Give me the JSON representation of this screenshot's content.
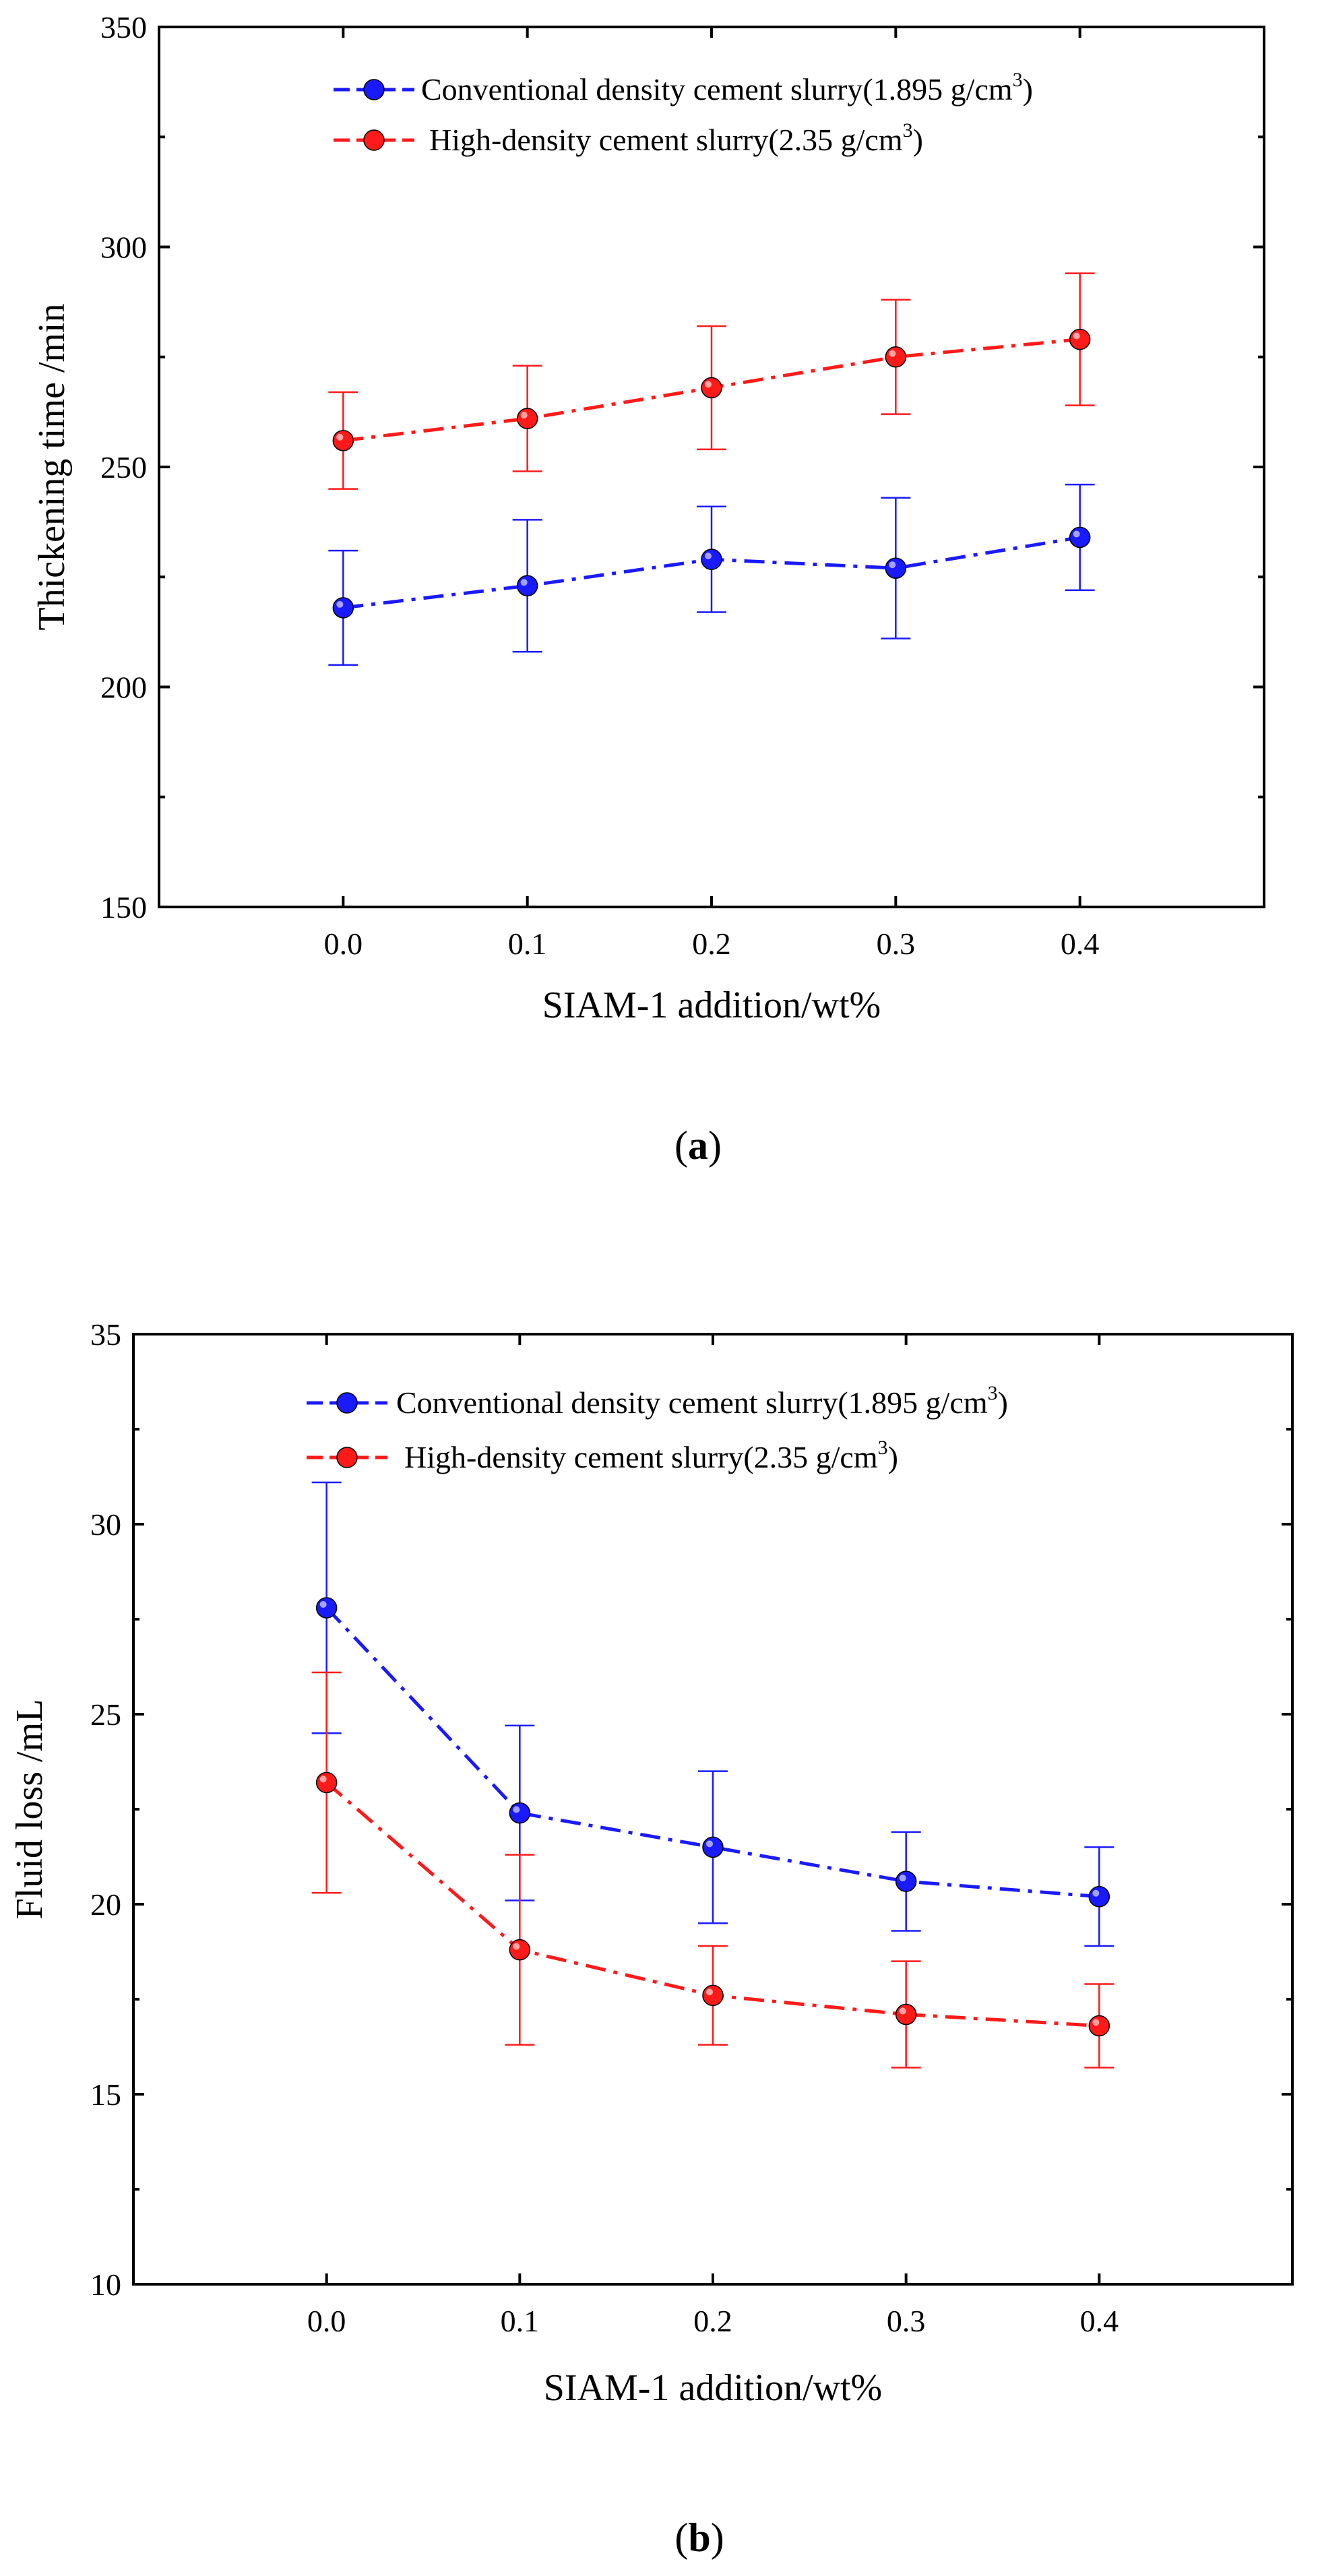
{
  "chart_data": [
    {
      "type": "line",
      "panel_label": "a",
      "xlabel": "SIAM-1 addition/wt%",
      "ylabel": "Thickening time /min",
      "x": [
        0.0,
        0.1,
        0.2,
        0.3,
        0.4
      ],
      "x_tick_labels": [
        "0.0",
        "0.1",
        "0.2",
        "0.3",
        "0.4"
      ],
      "xlim": [
        -0.1,
        0.5
      ],
      "ylim": [
        150,
        350
      ],
      "y_ticks": [
        150,
        200,
        250,
        300,
        350
      ],
      "y_tick_labels": [
        "150",
        "200",
        "250",
        "300",
        "350"
      ],
      "legend_position": "top-center",
      "grid": false,
      "series": [
        {
          "name": "Conventional density cement slurry(1.895 g/cm",
          "name_sup": "3",
          "name_tail": ")",
          "color": "#1a1aff",
          "values": [
            218,
            223,
            229,
            227,
            234
          ],
          "err_low": [
            205,
            208,
            217,
            211,
            222
          ],
          "err_high": [
            231,
            238,
            241,
            243,
            246
          ]
        },
        {
          "name": "High-density cement slurry(2.35 g/cm",
          "name_sup": "3",
          "name_tail": ")",
          "color": "#ff1a1a",
          "values": [
            256,
            261,
            268,
            275,
            279
          ],
          "err_low": [
            245,
            249,
            254,
            262,
            264
          ],
          "err_high": [
            267,
            273,
            282,
            288,
            294
          ]
        }
      ]
    },
    {
      "type": "line",
      "panel_label": "b",
      "xlabel": "SIAM-1 addition/wt%",
      "ylabel": "Fluid loss /mL",
      "x": [
        0.0,
        0.1,
        0.2,
        0.3,
        0.4
      ],
      "x_tick_labels": [
        "0.0",
        "0.1",
        "0.2",
        "0.3",
        "0.4"
      ],
      "xlim": [
        -0.1,
        0.5
      ],
      "ylim": [
        10,
        35
      ],
      "y_ticks": [
        10,
        15,
        20,
        25,
        30,
        35
      ],
      "y_tick_labels": [
        "10",
        "15",
        "20",
        "25",
        "30",
        "35"
      ],
      "legend_position": "top-center",
      "grid": false,
      "series": [
        {
          "name": "Conventional density cement slurry(1.895 g/cm",
          "name_sup": "3",
          "name_tail": ")",
          "color": "#1a1aff",
          "values": [
            27.8,
            22.4,
            21.5,
            20.6,
            20.2
          ],
          "err_low": [
            24.5,
            20.1,
            19.5,
            19.3,
            18.9
          ],
          "err_high": [
            31.1,
            24.7,
            23.5,
            21.9,
            21.5
          ]
        },
        {
          "name": "High-density cement slurry(2.35 g/cm",
          "name_sup": "3",
          "name_tail": ")",
          "color": "#ff1a1a",
          "values": [
            23.2,
            18.8,
            17.6,
            17.1,
            16.8
          ],
          "err_low": [
            20.3,
            16.3,
            16.3,
            15.7,
            15.7
          ],
          "err_high": [
            26.1,
            21.3,
            18.9,
            18.5,
            17.9
          ]
        }
      ]
    }
  ]
}
